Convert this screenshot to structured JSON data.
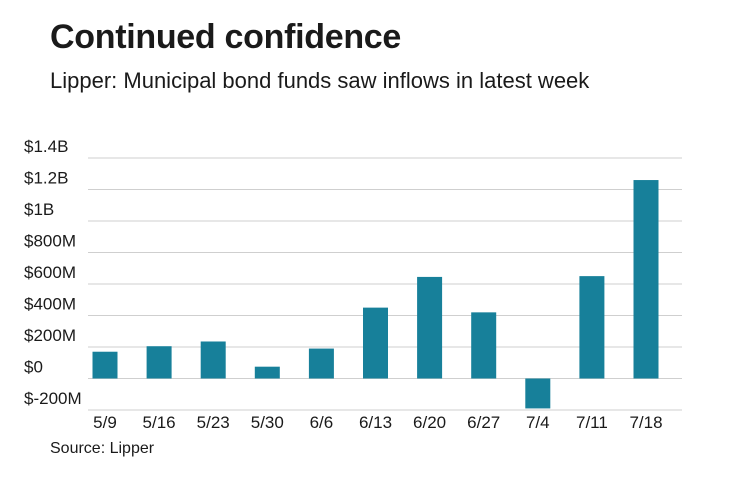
{
  "title": "Continued confidence",
  "subtitle": "Lipper: Municipal bond funds saw inflows in latest week",
  "source": "Source: Lipper",
  "colors": {
    "bar": "#17809a",
    "grid": "#cfcfcf",
    "text": "#1a1a1a"
  },
  "chart_data": {
    "type": "bar",
    "title": "",
    "xlabel": "",
    "ylabel": "",
    "categories": [
      "5/9",
      "5/16",
      "5/23",
      "5/30",
      "6/6",
      "6/13",
      "6/20",
      "6/27",
      "7/4",
      "7/11",
      "7/18"
    ],
    "values": [
      170000000,
      205000000,
      235000000,
      75000000,
      190000000,
      450000000,
      645000000,
      420000000,
      -190000000,
      650000000,
      1260000000
    ],
    "ylim": [
      -200000000,
      1400000000
    ],
    "yticks": [
      -200000000,
      0,
      200000000,
      400000000,
      600000000,
      800000000,
      1000000000,
      1200000000,
      1400000000
    ],
    "ytick_labels": [
      "$-200M",
      "$0",
      "$200M",
      "$400M",
      "$600M",
      "$800M",
      "$1B",
      "$1.2B",
      "$1.4B"
    ],
    "grid": true,
    "legend": "none"
  }
}
